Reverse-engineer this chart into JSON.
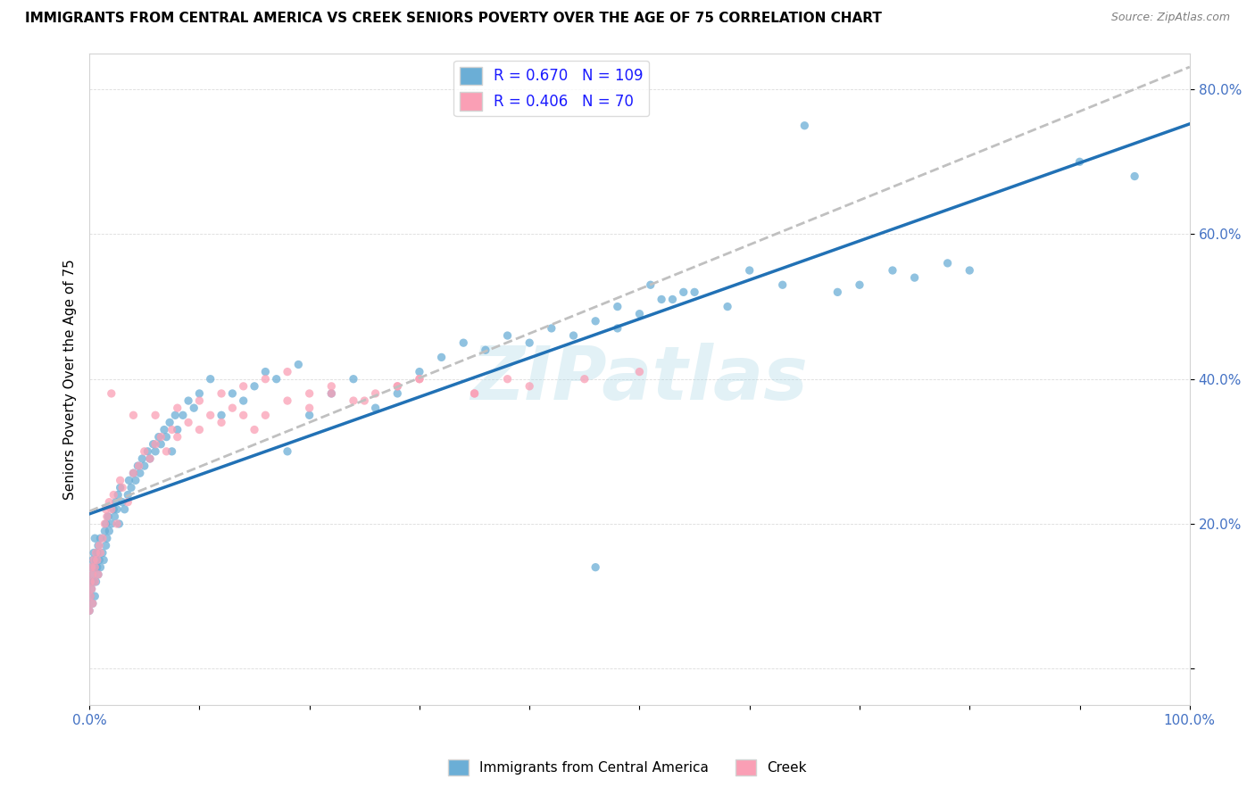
{
  "title": "IMMIGRANTS FROM CENTRAL AMERICA VS CREEK SENIORS POVERTY OVER THE AGE OF 75 CORRELATION CHART",
  "source": "Source: ZipAtlas.com",
  "ylabel": "Seniors Poverty Over the Age of 75",
  "xlim": [
    0,
    1.0
  ],
  "ylim": [
    -0.05,
    0.85
  ],
  "x_ticks": [
    0.0,
    0.1,
    0.2,
    0.3,
    0.4,
    0.5,
    0.6,
    0.7,
    0.8,
    0.9,
    1.0
  ],
  "x_tick_labels": [
    "0.0%",
    "",
    "",
    "",
    "",
    "",
    "",
    "",
    "",
    "",
    "100.0%"
  ],
  "y_ticks": [
    0.0,
    0.2,
    0.4,
    0.6,
    0.8
  ],
  "y_tick_labels": [
    "",
    "20.0%",
    "40.0%",
    "60.0%",
    "80.0%"
  ],
  "blue_R": 0.67,
  "blue_N": 109,
  "pink_R": 0.406,
  "pink_N": 70,
  "blue_color": "#6baed6",
  "pink_color": "#fa9fb5",
  "blue_line_color": "#2171b5",
  "pink_line_color": "#c0c0c0",
  "watermark": "ZIPatlas",
  "legend_label_blue": "Immigrants from Central America",
  "legend_label_pink": "Creek",
  "blue_scatter_x": [
    0.0,
    0.001,
    0.001,
    0.002,
    0.002,
    0.003,
    0.003,
    0.003,
    0.004,
    0.004,
    0.005,
    0.005,
    0.005,
    0.006,
    0.006,
    0.007,
    0.007,
    0.008,
    0.008,
    0.009,
    0.01,
    0.01,
    0.012,
    0.013,
    0.014,
    0.015,
    0.015,
    0.016,
    0.017,
    0.018,
    0.02,
    0.022,
    0.023,
    0.024,
    0.025,
    0.026,
    0.027,
    0.028,
    0.03,
    0.032,
    0.035,
    0.036,
    0.038,
    0.04,
    0.042,
    0.044,
    0.046,
    0.048,
    0.05,
    0.053,
    0.055,
    0.058,
    0.06,
    0.063,
    0.065,
    0.068,
    0.07,
    0.073,
    0.075,
    0.078,
    0.08,
    0.085,
    0.09,
    0.095,
    0.1,
    0.11,
    0.12,
    0.13,
    0.14,
    0.15,
    0.16,
    0.17,
    0.18,
    0.19,
    0.2,
    0.22,
    0.24,
    0.26,
    0.28,
    0.3,
    0.32,
    0.34,
    0.36,
    0.38,
    0.4,
    0.42,
    0.44,
    0.46,
    0.48,
    0.5,
    0.52,
    0.54,
    0.46,
    0.48,
    0.51,
    0.53,
    0.55,
    0.58,
    0.6,
    0.63,
    0.65,
    0.68,
    0.7,
    0.73,
    0.75,
    0.78,
    0.8,
    0.9,
    0.95
  ],
  "blue_scatter_y": [
    0.08,
    0.1,
    0.12,
    0.11,
    0.14,
    0.13,
    0.15,
    0.09,
    0.12,
    0.16,
    0.14,
    0.1,
    0.18,
    0.15,
    0.12,
    0.14,
    0.16,
    0.13,
    0.17,
    0.15,
    0.14,
    0.18,
    0.16,
    0.15,
    0.19,
    0.17,
    0.2,
    0.18,
    0.21,
    0.19,
    0.2,
    0.22,
    0.21,
    0.23,
    0.22,
    0.24,
    0.2,
    0.25,
    0.23,
    0.22,
    0.24,
    0.26,
    0.25,
    0.27,
    0.26,
    0.28,
    0.27,
    0.29,
    0.28,
    0.3,
    0.29,
    0.31,
    0.3,
    0.32,
    0.31,
    0.33,
    0.32,
    0.34,
    0.3,
    0.35,
    0.33,
    0.35,
    0.37,
    0.36,
    0.38,
    0.4,
    0.35,
    0.38,
    0.37,
    0.39,
    0.41,
    0.4,
    0.3,
    0.42,
    0.35,
    0.38,
    0.4,
    0.36,
    0.38,
    0.41,
    0.43,
    0.45,
    0.44,
    0.46,
    0.45,
    0.47,
    0.46,
    0.48,
    0.47,
    0.49,
    0.51,
    0.52,
    0.14,
    0.5,
    0.53,
    0.51,
    0.52,
    0.5,
    0.55,
    0.53,
    0.75,
    0.52,
    0.53,
    0.55,
    0.54,
    0.56,
    0.55,
    0.7,
    0.68
  ],
  "pink_scatter_x": [
    0.0,
    0.001,
    0.001,
    0.002,
    0.002,
    0.003,
    0.003,
    0.004,
    0.005,
    0.005,
    0.006,
    0.007,
    0.008,
    0.009,
    0.01,
    0.012,
    0.014,
    0.015,
    0.016,
    0.018,
    0.02,
    0.022,
    0.025,
    0.028,
    0.03,
    0.035,
    0.04,
    0.045,
    0.05,
    0.055,
    0.06,
    0.065,
    0.07,
    0.075,
    0.08,
    0.09,
    0.1,
    0.11,
    0.12,
    0.13,
    0.15,
    0.16,
    0.18,
    0.2,
    0.22,
    0.25,
    0.28,
    0.3,
    0.35,
    0.38,
    0.14,
    0.02,
    0.04,
    0.06,
    0.08,
    0.1,
    0.12,
    0.14,
    0.16,
    0.18,
    0.2,
    0.22,
    0.24,
    0.26,
    0.28,
    0.3,
    0.35,
    0.4,
    0.45,
    0.5
  ],
  "pink_scatter_y": [
    0.08,
    0.1,
    0.12,
    0.14,
    0.11,
    0.13,
    0.09,
    0.15,
    0.12,
    0.14,
    0.16,
    0.15,
    0.13,
    0.17,
    0.16,
    0.18,
    0.2,
    0.22,
    0.21,
    0.23,
    0.22,
    0.24,
    0.2,
    0.26,
    0.25,
    0.23,
    0.27,
    0.28,
    0.3,
    0.29,
    0.31,
    0.32,
    0.3,
    0.33,
    0.32,
    0.34,
    0.33,
    0.35,
    0.34,
    0.36,
    0.33,
    0.35,
    0.37,
    0.36,
    0.38,
    0.37,
    0.39,
    0.4,
    0.38,
    0.4,
    0.35,
    0.38,
    0.35,
    0.35,
    0.36,
    0.37,
    0.38,
    0.39,
    0.4,
    0.41,
    0.38,
    0.39,
    0.37,
    0.38,
    0.39,
    0.4,
    0.38,
    0.39,
    0.4,
    0.41
  ]
}
